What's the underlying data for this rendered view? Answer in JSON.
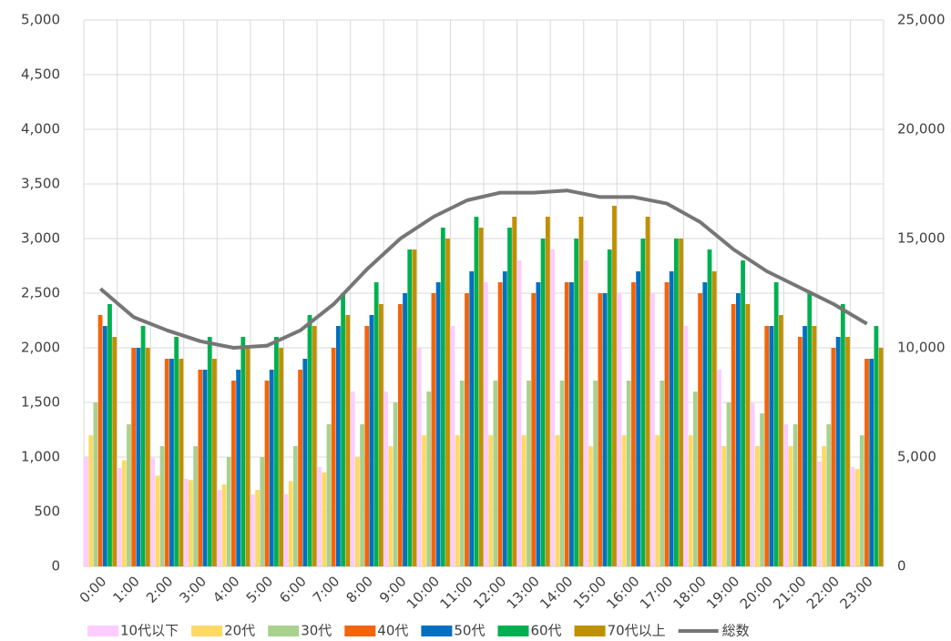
{
  "chart_data": {
    "type": "bar",
    "categories": [
      "0:00",
      "1:00",
      "2:00",
      "3:00",
      "4:00",
      "5:00",
      "6:00",
      "7:00",
      "8:00",
      "9:00",
      "10:00",
      "11:00",
      "12:00",
      "13:00",
      "14:00",
      "15:00",
      "16:00",
      "17:00",
      "18:00",
      "19:00",
      "20:00",
      "21:00",
      "22:00",
      "23:00"
    ],
    "series": [
      {
        "name": "10代以下",
        "color": "#ffccff",
        "values": [
          1000,
          900,
          990,
          800,
          700,
          660,
          660,
          910,
          1600,
          1600,
          2000,
          2200,
          2600,
          2800,
          2900,
          2800,
          2500,
          2500,
          2200,
          1800,
          1500,
          1300,
          960,
          910
        ]
      },
      {
        "name": "20代",
        "color": "#ffd966",
        "values": [
          1200,
          970,
          830,
          790,
          750,
          700,
          780,
          860,
          1000,
          1100,
          1200,
          1200,
          1200,
          1200,
          1200,
          1100,
          1200,
          1200,
          1200,
          1100,
          1100,
          1100,
          1100,
          890
        ]
      },
      {
        "name": "30代",
        "color": "#a9d18e",
        "values": [
          1500,
          1300,
          1100,
          1100,
          1000,
          1000,
          1100,
          1300,
          1300,
          1500,
          1600,
          1700,
          1700,
          1700,
          1700,
          1700,
          1700,
          1700,
          1600,
          1500,
          1400,
          1300,
          1300,
          1200
        ]
      },
      {
        "name": "40代",
        "color": "#f4640c",
        "values": [
          2300,
          2000,
          1900,
          1800,
          1700,
          1700,
          1800,
          2000,
          2200,
          2400,
          2500,
          2500,
          2600,
          2500,
          2600,
          2500,
          2600,
          2600,
          2500,
          2400,
          2200,
          2100,
          2000,
          1900
        ]
      },
      {
        "name": "50代",
        "color": "#0070c0",
        "values": [
          2200,
          2000,
          1900,
          1800,
          1800,
          1800,
          1900,
          2200,
          2300,
          2500,
          2600,
          2700,
          2700,
          2600,
          2600,
          2500,
          2700,
          2700,
          2600,
          2500,
          2200,
          2200,
          2100,
          1900
        ]
      },
      {
        "name": "60代",
        "color": "#00b050",
        "values": [
          2400,
          2200,
          2100,
          2100,
          2100,
          2100,
          2300,
          2500,
          2600,
          2900,
          3100,
          3200,
          3100,
          3000,
          3000,
          2900,
          3000,
          3000,
          2900,
          2800,
          2600,
          2500,
          2400,
          2200
        ]
      },
      {
        "name": "70代以上",
        "color": "#bf9000",
        "values": [
          2100,
          2000,
          1900,
          1900,
          2000,
          2000,
          2200,
          2300,
          2400,
          2900,
          3000,
          3100,
          3200,
          3200,
          3200,
          3300,
          3200,
          3000,
          2700,
          2400,
          2300,
          2200,
          2100,
          2000
        ]
      },
      {
        "name": "総数",
        "type": "line",
        "axis": "y2",
        "color": "#767676",
        "values": [
          12700,
          11400,
          10800,
          10300,
          10000,
          10100,
          10800,
          12000,
          13600,
          15000,
          16000,
          16750,
          17100,
          17100,
          17200,
          16900,
          16900,
          16600,
          15750,
          14500,
          13500,
          12750,
          12000,
          11100
        ]
      }
    ],
    "ylim": [
      0,
      5000
    ],
    "yticks": [
      0,
      500,
      {
        "value": 1000,
        "label": "1,000"
      },
      {
        "value": 1500,
        "label": "1,500"
      },
      {
        "value": 2000,
        "label": "2,000"
      },
      {
        "value": 2500,
        "label": "2,500"
      },
      {
        "value": 3000,
        "label": "3,000"
      },
      {
        "value": 3500,
        "label": "3,500"
      },
      {
        "value": 4000,
        "label": "4,000"
      },
      {
        "value": 4500,
        "label": "4,500"
      },
      {
        "value": 5000,
        "label": "5,000"
      }
    ],
    "y2lim": [
      0,
      25000
    ],
    "y2ticks": [
      0,
      {
        "value": 5000,
        "label": "5,000"
      },
      {
        "value": 10000,
        "label": "10,000"
      },
      {
        "value": 15000,
        "label": "15,000"
      },
      {
        "value": 20000,
        "label": "20,000"
      },
      {
        "value": 25000,
        "label": "25,000"
      }
    ],
    "grid": true,
    "legend": "bottom"
  }
}
